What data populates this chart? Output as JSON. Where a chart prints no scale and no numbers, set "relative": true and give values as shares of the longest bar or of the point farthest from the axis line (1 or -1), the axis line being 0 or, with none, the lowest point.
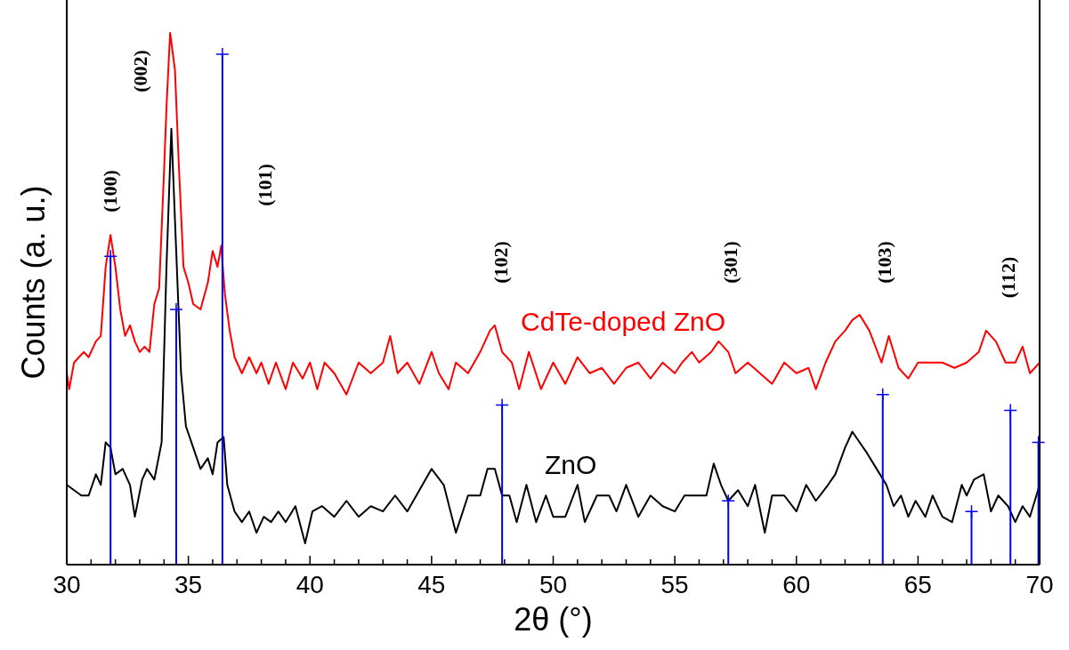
{
  "chart_data": {
    "type": "line",
    "relative": true,
    "xlabel": "2θ (°)",
    "ylabel": "Counts (a. u.)",
    "xlim": [
      30,
      70
    ],
    "xticks": [
      30,
      {
        "value": 31,
        "label": null
      },
      {
        "value": 32,
        "label": null
      },
      {
        "value": 33,
        "label": null
      },
      {
        "value": 34,
        "label": null
      },
      35,
      {
        "value": 36,
        "label": null
      },
      {
        "value": 37,
        "label": null
      },
      {
        "value": 38,
        "label": null
      },
      {
        "value": 39,
        "label": null
      },
      40,
      {
        "value": 41,
        "label": null
      },
      {
        "value": 42,
        "label": null
      },
      {
        "value": 43,
        "label": null
      },
      {
        "value": 44,
        "label": null
      },
      45,
      {
        "value": 46,
        "label": null
      },
      {
        "value": 47,
        "label": null
      },
      {
        "value": 48,
        "label": null
      },
      {
        "value": 49,
        "label": null
      },
      50,
      {
        "value": 51,
        "label": null
      },
      {
        "value": 52,
        "label": null
      },
      {
        "value": 53,
        "label": null
      },
      {
        "value": 54,
        "label": null
      },
      55,
      {
        "value": 56,
        "label": null
      },
      {
        "value": 57,
        "label": null
      },
      {
        "value": 58,
        "label": null
      },
      {
        "value": 59,
        "label": null
      },
      60,
      {
        "value": 61,
        "label": null
      },
      {
        "value": 62,
        "label": null
      },
      {
        "value": 63,
        "label": null
      },
      {
        "value": 64,
        "label": null
      },
      65,
      {
        "value": 66,
        "label": null
      },
      {
        "value": 67,
        "label": null
      },
      {
        "value": 68,
        "label": null
      },
      {
        "value": 69,
        "label": null
      },
      70
    ],
    "legend": false,
    "grid": false,
    "series": [
      {
        "name": "CdTe-doped ZnO",
        "color": "#ff0000",
        "x": [
          30.0,
          30.1,
          30.3,
          30.5,
          30.7,
          30.9,
          31.2,
          31.4,
          31.6,
          31.8,
          32.0,
          32.2,
          32.4,
          32.6,
          32.8,
          33.0,
          33.2,
          33.4,
          33.6,
          33.8,
          34.0,
          34.1,
          34.25,
          34.45,
          34.6,
          34.8,
          35.0,
          35.2,
          35.5,
          35.8,
          36.0,
          36.2,
          36.35,
          36.5,
          36.7,
          36.9,
          37.2,
          37.5,
          37.8,
          38.0,
          38.3,
          38.6,
          39.0,
          39.3,
          39.7,
          40.0,
          40.3,
          40.6,
          41.0,
          41.5,
          42.0,
          42.5,
          43.0,
          43.3,
          43.6,
          44.0,
          44.5,
          45.0,
          45.3,
          45.7,
          46.0,
          46.5,
          47.0,
          47.4,
          47.6,
          47.9,
          48.3,
          48.6,
          49.0,
          49.5,
          50.0,
          50.5,
          51.0,
          51.5,
          52.0,
          52.5,
          53.0,
          53.5,
          54.0,
          54.5,
          55.0,
          55.3,
          55.7,
          56.0,
          56.5,
          56.8,
          57.2,
          57.5,
          58.0,
          58.5,
          59.0,
          59.5,
          60.0,
          60.5,
          60.8,
          61.2,
          61.6,
          62.0,
          62.3,
          62.6,
          63.0,
          63.5,
          63.8,
          64.2,
          64.6,
          65.0,
          65.5,
          66.0,
          66.5,
          67.0,
          67.5,
          67.8,
          68.2,
          68.6,
          69.0,
          69.3,
          69.6,
          70.0
        ],
        "values": [
          0.36,
          0.33,
          0.38,
          0.39,
          0.4,
          0.39,
          0.42,
          0.43,
          0.56,
          0.62,
          0.56,
          0.48,
          0.43,
          0.45,
          0.42,
          0.4,
          0.41,
          0.4,
          0.49,
          0.52,
          0.74,
          0.86,
          1,
          0.93,
          0.76,
          0.56,
          0.53,
          0.49,
          0.48,
          0.53,
          0.59,
          0.56,
          0.6,
          0.51,
          0.44,
          0.39,
          0.36,
          0.39,
          0.36,
          0.38,
          0.34,
          0.38,
          0.33,
          0.38,
          0.35,
          0.38,
          0.33,
          0.38,
          0.36,
          0.32,
          0.38,
          0.36,
          0.38,
          0.43,
          0.36,
          0.38,
          0.34,
          0.4,
          0.36,
          0.33,
          0.38,
          0.36,
          0.4,
          0.44,
          0.45,
          0.4,
          0.38,
          0.33,
          0.4,
          0.33,
          0.38,
          0.34,
          0.39,
          0.36,
          0.37,
          0.34,
          0.37,
          0.38,
          0.35,
          0.38,
          0.36,
          0.38,
          0.4,
          0.38,
          0.4,
          0.42,
          0.4,
          0.36,
          0.38,
          0.36,
          0.34,
          0.38,
          0.36,
          0.37,
          0.33,
          0.38,
          0.42,
          0.44,
          0.46,
          0.47,
          0.44,
          0.38,
          0.43,
          0.37,
          0.35,
          0.38,
          0.38,
          0.38,
          0.37,
          0.38,
          0.4,
          0.44,
          0.42,
          0.38,
          0.38,
          0.41,
          0.36,
          0.38
        ]
      },
      {
        "name": "ZnO",
        "color": "#000000",
        "x": [
          30.0,
          30.3,
          30.6,
          30.9,
          31.2,
          31.4,
          31.6,
          31.8,
          32.0,
          32.3,
          32.6,
          32.8,
          33.1,
          33.3,
          33.6,
          33.9,
          34.1,
          34.3,
          34.5,
          34.7,
          34.9,
          35.2,
          35.5,
          35.8,
          36.0,
          36.2,
          36.45,
          36.6,
          36.9,
          37.2,
          37.5,
          37.8,
          38.1,
          38.4,
          38.7,
          39.0,
          39.4,
          39.8,
          40.1,
          40.5,
          41.0,
          41.5,
          42.0,
          42.5,
          43.0,
          43.5,
          44.0,
          44.5,
          45.0,
          45.5,
          46.0,
          46.5,
          47.0,
          47.3,
          47.6,
          47.9,
          48.2,
          48.5,
          48.9,
          49.3,
          49.7,
          50.0,
          50.5,
          51.0,
          51.3,
          51.8,
          52.3,
          52.6,
          53.0,
          53.5,
          54.0,
          54.5,
          55.0,
          55.4,
          55.8,
          56.3,
          56.6,
          56.9,
          57.2,
          57.6,
          58.0,
          58.3,
          58.7,
          59.0,
          59.5,
          60.0,
          60.4,
          60.8,
          61.3,
          61.6,
          62.0,
          62.3,
          62.6,
          62.9,
          63.3,
          63.7,
          64.0,
          64.3,
          64.6,
          64.9,
          65.3,
          65.6,
          66.0,
          66.4,
          66.8,
          67.0,
          67.3,
          67.7,
          68.0,
          68.3,
          68.7,
          69.0,
          69.3,
          69.6,
          70.0
        ],
        "values": [
          0.15,
          0.14,
          0.13,
          0.13,
          0.17,
          0.15,
          0.23,
          0.22,
          0.17,
          0.18,
          0.15,
          0.09,
          0.16,
          0.18,
          0.16,
          0.23,
          0.56,
          0.82,
          0.59,
          0.36,
          0.26,
          0.22,
          0.18,
          0.2,
          0.17,
          0.23,
          0.24,
          0.15,
          0.1,
          0.08,
          0.1,
          0.06,
          0.09,
          0.08,
          0.1,
          0.08,
          0.11,
          0.04,
          0.1,
          0.11,
          0.09,
          0.12,
          0.09,
          0.11,
          0.1,
          0.13,
          0.1,
          0.14,
          0.18,
          0.15,
          0.06,
          0.13,
          0.13,
          0.18,
          0.18,
          0.13,
          0.13,
          0.08,
          0.15,
          0.08,
          0.13,
          0.09,
          0.09,
          0.15,
          0.08,
          0.13,
          0.13,
          0.1,
          0.15,
          0.09,
          0.13,
          0.11,
          0.1,
          0.13,
          0.13,
          0.13,
          0.19,
          0.15,
          0.12,
          0.14,
          0.11,
          0.15,
          0.06,
          0.13,
          0.13,
          0.1,
          0.15,
          0.12,
          0.15,
          0.17,
          0.22,
          0.25,
          0.23,
          0.21,
          0.18,
          0.15,
          0.11,
          0.13,
          0.09,
          0.12,
          0.09,
          0.13,
          0.09,
          0.08,
          0.15,
          0.13,
          0.16,
          0.17,
          0.1,
          0.13,
          0.11,
          0.08,
          0.11,
          0.09,
          0.15
        ]
      },
      {
        "type": "lollipop",
        "color": "#0000ff",
        "marker": "cross",
        "x": [
          31.8,
          34.5,
          36.4,
          47.9,
          57.2,
          63.55,
          67.2,
          68.8,
          69.95
        ],
        "values": [
          0.58,
          0.48,
          0.96,
          0.3,
          0.12,
          0.32,
          0.1,
          0.29,
          0.23
        ]
      }
    ],
    "annotations": [
      "(100)",
      "(002)",
      "(101)",
      "(102)",
      "(301)",
      "(103)",
      "(112)"
    ]
  }
}
